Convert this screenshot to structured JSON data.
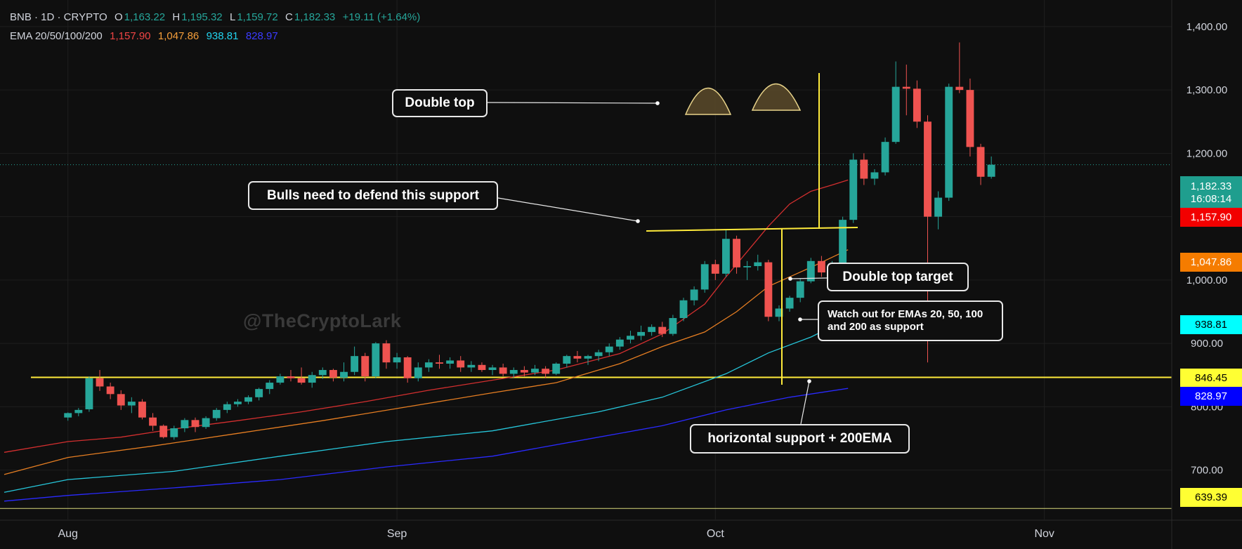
{
  "header": {
    "symbol": "BNB · 1D · CRYPTO",
    "o_label": "O",
    "o": "1,163.22",
    "h_label": "H",
    "h": "1,195.32",
    "l_label": "L",
    "l": "1,159.72",
    "c_label": "C",
    "c": "1,182.33",
    "change": "+19.11 (+1.64%)"
  },
  "ema_legend": {
    "label": "EMA 20/50/100/200",
    "ema20": "1,157.90",
    "ema50": "1,047.86",
    "ema100": "938.81",
    "ema200": "828.97"
  },
  "colors": {
    "up": "#26a69a",
    "down": "#ef5350",
    "ema20": "#d32f2f",
    "ema50": "#e67e22",
    "ema100": "#26c6da",
    "ema200": "#2a2aff",
    "annotation": "#ffeb3b",
    "background": "#0f0f0f",
    "grid": "#1f1f1f"
  },
  "price_labels": {
    "last_price": "1,182.33",
    "countdown": "16:08:14",
    "ema20": "1,157.90",
    "ema50": "1,047.86",
    "ema100": "938.81",
    "support": "846.45",
    "ema200": "828.97",
    "low_line": "639.39"
  },
  "annotations": {
    "double_top": "Double top",
    "bulls": "Bulls need to defend this support",
    "target": "Double top target",
    "emas_support": "Watch out for EMAs 20, 50, 100 and 200 as support",
    "horizontal": "horizontal support + 200EMA"
  },
  "watermark": "@TheCryptoLark",
  "chart_data": {
    "type": "candlestick",
    "y_axis": {
      "ticks": [
        700,
        800,
        900,
        1000,
        1100,
        1200,
        1300,
        1400
      ],
      "tick_labels": [
        "700.00",
        "800.00",
        "900.00",
        "1,000.00",
        "1,100.00",
        "1,200.00",
        "1,300.00",
        "1,400.00"
      ],
      "range": [
        622,
        1442
      ],
      "position": "right"
    },
    "x_axis": {
      "labels": [
        "Aug",
        "Sep",
        "Oct",
        "Nov"
      ],
      "label_days": [
        0,
        31,
        61,
        92
      ],
      "range": [
        -6.4,
        104
      ]
    },
    "horizontal_lines": [
      {
        "name": "support",
        "value": 846.45
      },
      {
        "name": "low",
        "value": 639.39
      }
    ],
    "candles": [
      [
        783,
        791,
        778,
        790
      ],
      [
        790,
        798,
        785,
        795
      ],
      [
        796,
        848,
        792,
        845
      ],
      [
        845,
        858,
        825,
        832
      ],
      [
        832,
        838,
        812,
        820
      ],
      [
        820,
        826,
        795,
        802
      ],
      [
        802,
        815,
        790,
        808
      ],
      [
        808,
        812,
        780,
        783
      ],
      [
        783,
        790,
        762,
        770
      ],
      [
        770,
        772,
        750,
        752
      ],
      [
        752,
        770,
        748,
        766
      ],
      [
        766,
        782,
        760,
        779
      ],
      [
        779,
        783,
        760,
        768
      ],
      [
        768,
        785,
        765,
        782
      ],
      [
        782,
        798,
        778,
        795
      ],
      [
        795,
        808,
        790,
        804
      ],
      [
        804,
        812,
        800,
        808
      ],
      [
        808,
        818,
        804,
        815
      ],
      [
        815,
        830,
        810,
        828
      ],
      [
        828,
        842,
        820,
        838
      ],
      [
        838,
        852,
        835,
        848
      ],
      [
        848,
        858,
        840,
        845
      ],
      [
        845,
        862,
        835,
        838
      ],
      [
        838,
        855,
        830,
        850
      ],
      [
        850,
        862,
        844,
        858
      ],
      [
        858,
        860,
        840,
        846
      ],
      [
        846,
        870,
        840,
        855
      ],
      [
        855,
        895,
        850,
        880
      ],
      [
        880,
        885,
        840,
        848
      ],
      [
        848,
        902,
        845,
        900
      ],
      [
        900,
        905,
        860,
        870
      ],
      [
        870,
        885,
        860,
        878
      ],
      [
        878,
        880,
        838,
        845
      ],
      [
        845,
        870,
        840,
        862
      ],
      [
        862,
        875,
        855,
        870
      ],
      [
        870,
        882,
        860,
        868
      ],
      [
        868,
        878,
        860,
        873
      ],
      [
        873,
        880,
        855,
        862
      ],
      [
        862,
        872,
        855,
        866
      ],
      [
        866,
        870,
        855,
        858
      ],
      [
        858,
        866,
        850,
        862
      ],
      [
        862,
        868,
        848,
        852
      ],
      [
        852,
        862,
        846,
        858
      ],
      [
        858,
        864,
        848,
        854
      ],
      [
        854,
        866,
        850,
        860
      ],
      [
        860,
        864,
        845,
        852
      ],
      [
        852,
        870,
        850,
        868
      ],
      [
        868,
        882,
        862,
        880
      ],
      [
        880,
        888,
        870,
        876
      ],
      [
        876,
        882,
        866,
        880
      ],
      [
        880,
        890,
        872,
        886
      ],
      [
        886,
        900,
        880,
        895
      ],
      [
        895,
        910,
        890,
        906
      ],
      [
        906,
        920,
        900,
        912
      ],
      [
        912,
        928,
        905,
        918
      ],
      [
        918,
        930,
        912,
        926
      ],
      [
        926,
        934,
        910,
        915
      ],
      [
        915,
        945,
        912,
        940
      ],
      [
        940,
        972,
        935,
        968
      ],
      [
        968,
        990,
        960,
        985
      ],
      [
        985,
        1030,
        980,
        1025
      ],
      [
        1025,
        1032,
        1000,
        1010
      ],
      [
        1010,
        1080,
        1005,
        1065
      ],
      [
        1065,
        1070,
        1010,
        1020
      ],
      [
        1020,
        1030,
        1000,
        1022
      ],
      [
        1022,
        1040,
        1015,
        1028
      ],
      [
        1028,
        1032,
        935,
        942
      ],
      [
        942,
        960,
        935,
        955
      ],
      [
        955,
        975,
        950,
        972
      ],
      [
        972,
        1002,
        965,
        998
      ],
      [
        998,
        1035,
        995,
        1030
      ],
      [
        1030,
        1038,
        1005,
        1012
      ],
      [
        1012,
        1030,
        1008,
        1026
      ],
      [
        1026,
        1100,
        1022,
        1095
      ],
      [
        1095,
        1200,
        1090,
        1190
      ],
      [
        1190,
        1200,
        1150,
        1160
      ],
      [
        1160,
        1175,
        1150,
        1170
      ],
      [
        1170,
        1225,
        1165,
        1218
      ],
      [
        1218,
        1345,
        1215,
        1305
      ],
      [
        1305,
        1340,
        1260,
        1302
      ],
      [
        1302,
        1315,
        1240,
        1250
      ],
      [
        1250,
        1260,
        870,
        1100
      ],
      [
        1100,
        1140,
        1080,
        1130
      ],
      [
        1130,
        1310,
        1125,
        1305
      ],
      [
        1305,
        1375,
        1295,
        1300
      ],
      [
        1300,
        1318,
        1195,
        1210
      ],
      [
        1210,
        1215,
        1150,
        1163
      ],
      [
        1163,
        1195,
        1160,
        1182
      ]
    ],
    "ema20": [
      [
        -6,
        728
      ],
      [
        0,
        745
      ],
      [
        5,
        752
      ],
      [
        10,
        765
      ],
      [
        16,
        778
      ],
      [
        22,
        792
      ],
      [
        28,
        808
      ],
      [
        34,
        826
      ],
      [
        40,
        842
      ],
      [
        46,
        858
      ],
      [
        52,
        884
      ],
      [
        56,
        915
      ],
      [
        60,
        962
      ],
      [
        62,
        1005
      ],
      [
        64,
        1045
      ],
      [
        66,
        1085
      ],
      [
        68,
        1120
      ],
      [
        70,
        1140
      ],
      [
        72,
        1150
      ],
      [
        73.5,
        1157.9
      ]
    ],
    "ema50": [
      [
        -6,
        693
      ],
      [
        0,
        720
      ],
      [
        8,
        738
      ],
      [
        16,
        758
      ],
      [
        24,
        778
      ],
      [
        32,
        800
      ],
      [
        40,
        822
      ],
      [
        46,
        838
      ],
      [
        52,
        868
      ],
      [
        56,
        895
      ],
      [
        60,
        918
      ],
      [
        63,
        950
      ],
      [
        66,
        990
      ],
      [
        70,
        1020
      ],
      [
        73.5,
        1047.86
      ]
    ],
    "ema100": [
      [
        -6,
        665
      ],
      [
        0,
        685
      ],
      [
        10,
        698
      ],
      [
        20,
        722
      ],
      [
        30,
        745
      ],
      [
        40,
        762
      ],
      [
        50,
        792
      ],
      [
        56,
        815
      ],
      [
        62,
        852
      ],
      [
        66,
        885
      ],
      [
        70,
        910
      ],
      [
        73.5,
        938.81
      ]
    ],
    "ema200": [
      [
        -6,
        651
      ],
      [
        0,
        660
      ],
      [
        10,
        672
      ],
      [
        20,
        685
      ],
      [
        30,
        705
      ],
      [
        40,
        722
      ],
      [
        50,
        752
      ],
      [
        56,
        770
      ],
      [
        62,
        795
      ],
      [
        68,
        815
      ],
      [
        73.5,
        828.97
      ]
    ]
  }
}
